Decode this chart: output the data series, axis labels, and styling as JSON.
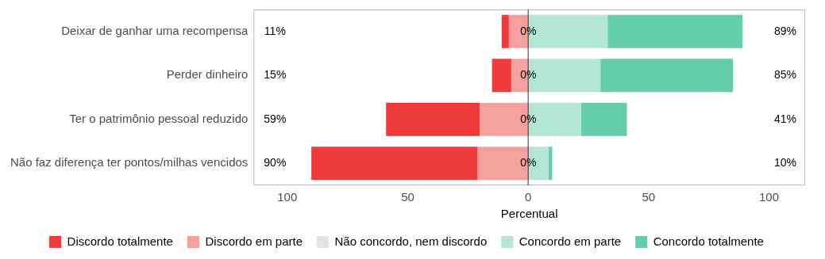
{
  "chart_data": {
    "type": "bar",
    "orientation": "horizontal",
    "stacked": true,
    "xlabel": "Percentual",
    "categories": [
      "Deixar de ganhar uma recompensa",
      "Perder dinheiro",
      "Ter o patrimônio pessoal reduzido",
      "Não faz diferença ter pontos/milhas vencidos"
    ],
    "series": [
      {
        "name": "Discordo em parte",
        "color": "#f4a09e",
        "values": [
          -8,
          -7,
          -20,
          -21
        ]
      },
      {
        "name": "Discordo totalmente",
        "color": "#ef3b3c",
        "values": [
          -3,
          -8,
          -39,
          -69
        ]
      },
      {
        "name": "Não concordo, nem discordo",
        "color": "#e3e3e3",
        "values": [
          0,
          0,
          0,
          0
        ]
      },
      {
        "name": "Concordo em parte",
        "color": "#b3e6d4",
        "values": [
          33,
          30,
          22,
          8.5
        ]
      },
      {
        "name": "Concordo totalmente",
        "color": "#66cdaa",
        "values": [
          56,
          55,
          19,
          1.5
        ]
      }
    ],
    "annotations": [
      "11%",
      "15%",
      "59%",
      "90%",
      "0%",
      "0%",
      "0%",
      "0%",
      "89%",
      "85%",
      "41%",
      "10%"
    ],
    "xlim": [
      -114,
      115
    ],
    "xticks": [
      {
        "value": -100,
        "label": "100"
      },
      {
        "value": -50,
        "label": "50"
      },
      0,
      50,
      100
    ],
    "ref_lines": [
      {
        "axis": "x",
        "value": 0,
        "color": "#333333"
      }
    ],
    "grid": false,
    "legend": "bottom"
  }
}
